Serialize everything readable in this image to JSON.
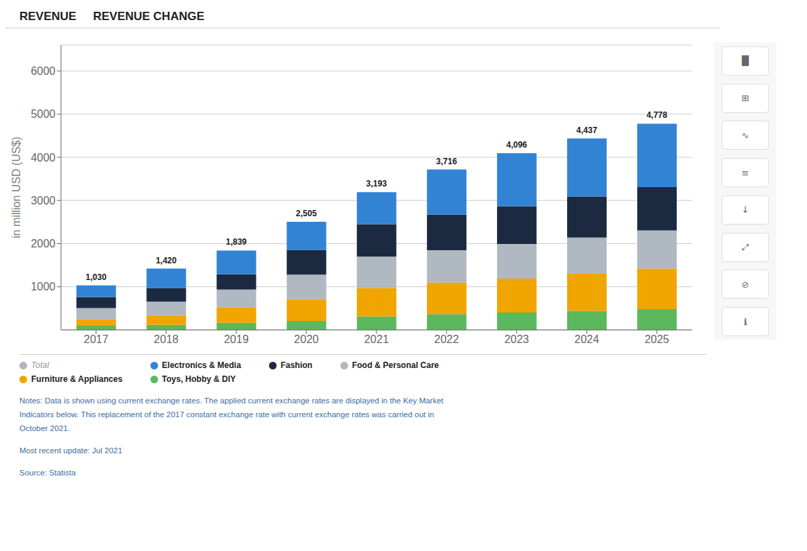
{
  "chart_data": {
    "type": "bar",
    "stacked": true,
    "title": "REVENUE",
    "subtitle": "REVENUE CHANGE",
    "ylabel": "in million USD (US$)",
    "categories": [
      "2017",
      "2018",
      "2019",
      "2020",
      "2021",
      "2022",
      "2023",
      "2024",
      "2025"
    ],
    "series": [
      {
        "name": "Toys, Hobby & DIY",
        "color": "#5cb85c",
        "values": [
          95,
          115,
          165,
          210,
          310,
          365,
          400,
          440,
          480
        ]
      },
      {
        "name": "Furniture & Appliances",
        "color": "#f0a500",
        "values": [
          150,
          220,
          360,
          500,
          660,
          730,
          790,
          860,
          940
        ]
      },
      {
        "name": "Food & Personal Care",
        "color": "#b0b8c1",
        "values": [
          260,
          320,
          410,
          570,
          730,
          750,
          800,
          840,
          885
        ]
      },
      {
        "name": "Fashion",
        "color": "#1b2a40",
        "values": [
          255,
          315,
          355,
          575,
          750,
          825,
          876,
          952,
          1003
        ]
      },
      {
        "name": "Electronics & Media",
        "color": "#3383d4",
        "values": [
          270,
          450,
          549,
          650,
          743,
          1046,
          1230,
          1345,
          1470
        ]
      }
    ],
    "totals": [
      1030,
      1420,
      1839,
      2505,
      3193,
      3716,
      4096,
      4437,
      4778
    ],
    "total_labels": [
      "1,030",
      "1,420",
      "1,839",
      "2,505",
      "3,193",
      "3,716",
      "4,096",
      "4,437",
      "4,778"
    ],
    "total_legend": {
      "name": "Total",
      "color": "#b0b8c1"
    },
    "ylim": [
      0,
      6600
    ],
    "yticks": [
      1000,
      2000,
      3000,
      4000,
      5000,
      6000
    ],
    "grid": true,
    "legend": "bottom",
    "notes": [
      "Notes: Data is shown using current exchange rates. The applied current exchange rates are displayed in the Key Market",
      "Indicators below. This replacement of the 2017 constant exchange rate with current exchange rates was carried out in",
      "October 2021."
    ],
    "update": "Most recent update: Jul 2021",
    "source": "Source: Statista",
    "icons": [
      "▐▌",
      "⊞",
      "∿",
      "≡",
      "↓",
      "⤢",
      "⊘",
      "ℹ"
    ]
  }
}
